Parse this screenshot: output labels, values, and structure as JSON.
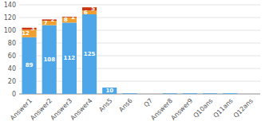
{
  "chart_data": {
    "type": "bar",
    "stacked": true,
    "grid": true,
    "data_labels": true,
    "categories": [
      "Answer1",
      "Answer2",
      "Answer3",
      "Answer4",
      "Ans5",
      "Ans6",
      "Q7",
      "Answer8",
      "Answer9",
      "Q10ans",
      "Q11ans",
      "Q12ans"
    ],
    "series": [
      {
        "color": "#4da6e8",
        "values": [
          89,
          108,
          112,
          125,
          10,
          1,
          0,
          1,
          1,
          1,
          1,
          0
        ],
        "value_labels": [
          "89",
          "108",
          "112",
          "125",
          "10",
          null,
          null,
          null,
          null,
          null,
          null,
          null
        ]
      },
      {
        "color": "#f0a030",
        "values": [
          12,
          7,
          8,
          6,
          0,
          0,
          0,
          0,
          0,
          0,
          0,
          0
        ],
        "value_labels": [
          "12",
          "7",
          "8",
          "6",
          null,
          null,
          null,
          null,
          null,
          null,
          null,
          null
        ]
      },
      {
        "color": "#cc3311",
        "values": [
          3,
          2,
          1,
          5,
          0,
          0,
          0,
          0,
          0,
          0,
          0,
          0
        ],
        "value_labels": [
          "3",
          "2",
          "1",
          "5",
          null,
          null,
          null,
          null,
          null,
          null,
          null,
          null
        ]
      }
    ],
    "ylim": [
      0,
      140
    ],
    "yticks": [
      0,
      20,
      40,
      60,
      80,
      100,
      120,
      140
    ]
  }
}
